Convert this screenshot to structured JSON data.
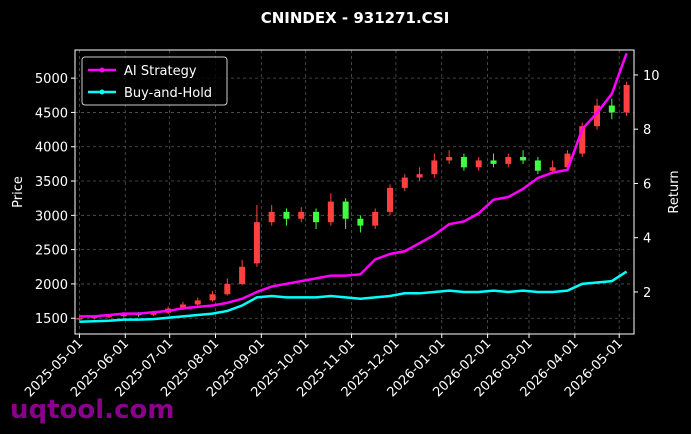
{
  "chart_data": {
    "type": "candlestick",
    "title": "CNINDEX - 931271.CSI",
    "ylabel": "Price",
    "y2label": "Return",
    "watermark": "uqtool.com",
    "x": [
      "2025-05-01",
      "2025-05-11",
      "2025-05-21",
      "2025-05-31",
      "2025-06-10",
      "2025-06-20",
      "2025-06-30",
      "2025-07-10",
      "2025-07-20",
      "2025-07-30",
      "2025-08-09",
      "2025-08-19",
      "2025-08-29",
      "2025-09-08",
      "2025-09-18",
      "2025-09-28",
      "2025-10-08",
      "2025-10-18",
      "2025-10-28",
      "2025-11-07",
      "2025-11-17",
      "2025-11-27",
      "2025-12-07",
      "2025-12-17",
      "2025-12-27",
      "2026-01-06",
      "2026-01-16",
      "2026-01-26",
      "2026-02-05",
      "2026-02-15",
      "2026-02-25",
      "2026-03-07",
      "2026-03-17",
      "2026-03-27",
      "2026-04-06",
      "2026-04-16",
      "2026-04-26",
      "2026-05-06"
    ],
    "open": [
      1480,
      1500,
      1520,
      1530,
      1560,
      1550,
      1580,
      1640,
      1700,
      1760,
      1850,
      2000,
      2300,
      2900,
      3050,
      2950,
      3050,
      2900,
      3200,
      2950,
      2850,
      3050,
      3400,
      3550,
      3600,
      3800,
      3850,
      3700,
      3800,
      3750,
      3850,
      3800,
      3650,
      3700,
      3900,
      4300,
      4600,
      4500
    ],
    "high": [
      1530,
      1540,
      1560,
      1590,
      1590,
      1610,
      1670,
      1740,
      1800,
      1900,
      2080,
      2350,
      3150,
      3150,
      3100,
      3120,
      3100,
      3320,
      3250,
      3000,
      3100,
      3450,
      3600,
      3700,
      3900,
      3950,
      3900,
      3850,
      3900,
      3900,
      3950,
      3850,
      3800,
      3950,
      4350,
      4700,
      4700,
      4950
    ],
    "low": [
      1460,
      1480,
      1500,
      1510,
      1520,
      1530,
      1560,
      1620,
      1680,
      1740,
      1830,
      1980,
      2250,
      2850,
      2850,
      2900,
      2800,
      2850,
      2800,
      2750,
      2800,
      3000,
      3350,
      3500,
      3550,
      3750,
      3650,
      3650,
      3700,
      3700,
      3750,
      3600,
      3600,
      3650,
      3850,
      4250,
      4400,
      4450
    ],
    "close": [
      1500,
      1520,
      1530,
      1560,
      1550,
      1580,
      1640,
      1700,
      1760,
      1850,
      2000,
      2250,
      2900,
      3050,
      2950,
      3050,
      2900,
      3200,
      2950,
      2850,
      3050,
      3400,
      3550,
      3600,
      3800,
      3850,
      3700,
      3800,
      3750,
      3850,
      3800,
      3650,
      3700,
      3900,
      4300,
      4600,
      4500,
      4900
    ],
    "up_color": "#ff4040",
    "down_color": "#40ff40",
    "series": [
      {
        "name": "AI Strategy",
        "color": "#ff00ff",
        "axis": "y2",
        "values": [
          1.1,
          1.1,
          1.15,
          1.2,
          1.2,
          1.25,
          1.3,
          1.4,
          1.45,
          1.5,
          1.6,
          1.75,
          2.0,
          2.2,
          2.3,
          2.4,
          2.5,
          2.6,
          2.6,
          2.65,
          3.2,
          3.4,
          3.5,
          3.8,
          4.1,
          4.5,
          4.6,
          4.9,
          5.4,
          5.5,
          5.8,
          6.2,
          6.4,
          6.5,
          8.0,
          8.6,
          9.3,
          10.8
        ]
      },
      {
        "name": "Buy-and-Hold",
        "color": "#00ffff",
        "axis": "y2",
        "values": [
          0.9,
          0.92,
          0.94,
          0.98,
          0.98,
          1.0,
          1.05,
          1.1,
          1.15,
          1.2,
          1.3,
          1.5,
          1.8,
          1.85,
          1.8,
          1.8,
          1.8,
          1.85,
          1.8,
          1.75,
          1.8,
          1.85,
          1.95,
          1.95,
          2.0,
          2.05,
          2.0,
          2.0,
          2.05,
          2.0,
          2.05,
          2.0,
          2.0,
          2.05,
          2.3,
          2.35,
          2.4,
          2.75
        ]
      }
    ],
    "xlim": [
      "2025-04-28",
      "2026-05-11"
    ],
    "xticks": [
      "2025-05-01",
      "2025-06-01",
      "2025-07-01",
      "2025-08-01",
      "2025-09-01",
      "2025-10-01",
      "2025-11-01",
      "2025-12-01",
      "2026-01-01",
      "2026-02-01",
      "2026-03-01",
      "2026-04-01",
      "2026-05-01"
    ],
    "ylim": [
      1270,
      5410
    ],
    "yticks": [
      1500,
      2000,
      2500,
      3000,
      3500,
      4000,
      4500,
      5000
    ],
    "y2lim": [
      0.45,
      10.92
    ],
    "y2ticks": [
      2,
      4,
      6,
      8,
      10
    ],
    "grid": true,
    "legend": "upper left"
  }
}
